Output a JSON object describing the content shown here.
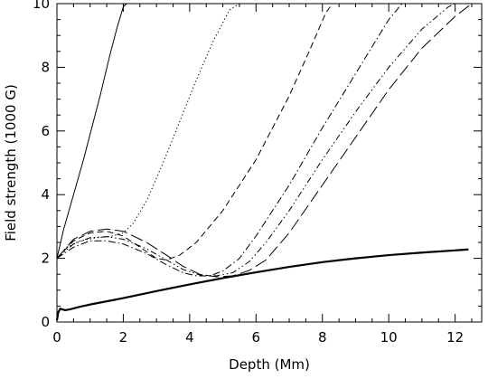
{
  "chart_data": {
    "type": "line",
    "title": "",
    "xlabel": "Depth (Mm)",
    "ylabel": "Field strength (1000 G)",
    "xlim": [
      0,
      12.8
    ],
    "ylim": [
      0,
      10
    ],
    "xticks": [
      0,
      2,
      4,
      6,
      8,
      10,
      12
    ],
    "yticks": [
      0,
      2,
      4,
      6,
      8,
      10
    ],
    "grid": false,
    "legend": "none",
    "series": [
      {
        "style": "thick-solid",
        "x": [
          0,
          0.04,
          0.1,
          0.15,
          0.25,
          0.4,
          0.7,
          1.0,
          1.5,
          2,
          3,
          4,
          5,
          6,
          7,
          8,
          9,
          10,
          11,
          12,
          12.4
        ],
        "y": [
          0.05,
          0.3,
          0.42,
          0.4,
          0.37,
          0.4,
          0.48,
          0.55,
          0.65,
          0.75,
          0.97,
          1.18,
          1.38,
          1.56,
          1.73,
          1.88,
          2.0,
          2.1,
          2.18,
          2.25,
          2.28
        ]
      },
      {
        "style": "solid",
        "x": [
          0,
          0.2,
          0.5,
          0.8,
          1.0,
          1.3,
          1.6,
          1.8,
          2.0,
          2.1
        ],
        "y": [
          2.0,
          2.9,
          4.0,
          5.1,
          5.9,
          7.1,
          8.4,
          9.2,
          9.9,
          10.0
        ]
      },
      {
        "style": "dotted",
        "x": [
          0,
          0.3,
          0.7,
          1.2,
          1.6,
          2.0,
          2.3,
          2.7,
          3.2,
          3.7,
          4.2,
          4.7,
          5.2,
          5.5
        ],
        "y": [
          2.0,
          2.35,
          2.55,
          2.65,
          2.68,
          2.8,
          3.1,
          3.8,
          5.0,
          6.3,
          7.6,
          8.8,
          9.8,
          10.0
        ]
      },
      {
        "style": "dashed",
        "x": [
          0,
          0.5,
          1.0,
          1.5,
          2.0,
          2.5,
          3.0,
          3.3,
          3.7,
          4.2,
          5.0,
          6.0,
          7.0,
          7.6,
          8.1,
          8.3
        ],
        "y": [
          2.0,
          2.55,
          2.8,
          2.85,
          2.7,
          2.35,
          2.0,
          1.95,
          2.1,
          2.5,
          3.5,
          5.1,
          7.1,
          8.5,
          9.7,
          10.0
        ]
      },
      {
        "style": "dash-dot",
        "x": [
          0,
          0.5,
          1.0,
          1.5,
          2.0,
          2.7,
          3.3,
          3.8,
          4.2,
          4.6,
          5.0,
          5.5,
          6.0,
          7.0,
          8.0,
          9.0,
          10.0,
          10.4
        ],
        "y": [
          2.0,
          2.35,
          2.55,
          2.55,
          2.45,
          2.15,
          1.8,
          1.55,
          1.45,
          1.45,
          1.6,
          2.0,
          2.7,
          4.3,
          6.1,
          7.8,
          9.5,
          10.0
        ]
      },
      {
        "style": "dash-dot-dot",
        "x": [
          0,
          0.5,
          1.0,
          1.5,
          2.0,
          2.7,
          3.3,
          3.8,
          4.3,
          4.8,
          5.3,
          5.8,
          6.3,
          7.0,
          8.0,
          9.0,
          10.0,
          11.0,
          11.8,
          12.0
        ],
        "y": [
          2.0,
          2.45,
          2.65,
          2.68,
          2.6,
          2.3,
          1.95,
          1.65,
          1.48,
          1.45,
          1.55,
          1.9,
          2.5,
          3.5,
          5.1,
          6.6,
          8.0,
          9.2,
          9.9,
          10.0
        ]
      },
      {
        "style": "long-dash",
        "x": [
          0,
          0.5,
          1.0,
          1.5,
          2.0,
          2.7,
          3.3,
          3.8,
          4.3,
          4.8,
          5.3,
          5.8,
          6.3,
          7.0,
          8.0,
          9.0,
          10.0,
          11.0,
          12.0,
          12.5
        ],
        "y": [
          2.0,
          2.6,
          2.85,
          2.92,
          2.85,
          2.5,
          2.1,
          1.75,
          1.5,
          1.42,
          1.45,
          1.62,
          1.95,
          2.8,
          4.3,
          5.8,
          7.3,
          8.6,
          9.6,
          10.0
        ]
      }
    ]
  }
}
